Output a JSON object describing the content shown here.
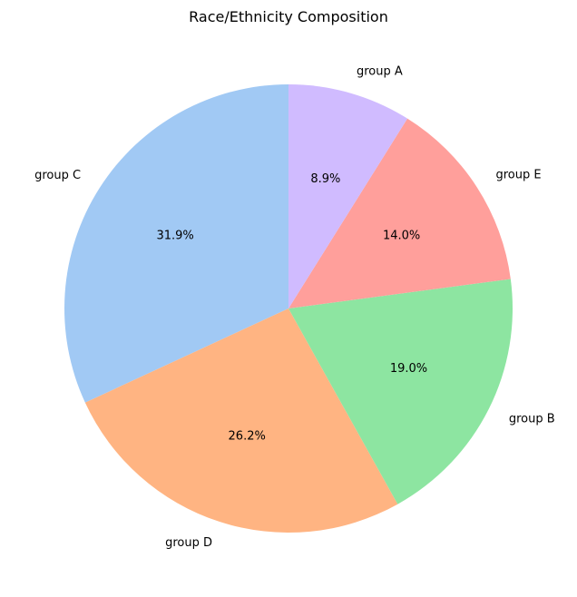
{
  "chart_data": {
    "type": "pie",
    "title": "Race/Ethnicity Composition",
    "categories": [
      "group C",
      "group D",
      "group B",
      "group E",
      "group A"
    ],
    "values": [
      31.9,
      26.2,
      19.0,
      14.0,
      8.9
    ],
    "value_labels": [
      "31.9%",
      "26.2%",
      "19.0%",
      "14.0%",
      "8.9%"
    ],
    "colors": [
      "#a1c9f4",
      "#ffb482",
      "#8de5a1",
      "#ff9f9b",
      "#d0bbff"
    ],
    "start_angle_deg": 90,
    "direction": "counterclockwise",
    "legend": "none"
  }
}
